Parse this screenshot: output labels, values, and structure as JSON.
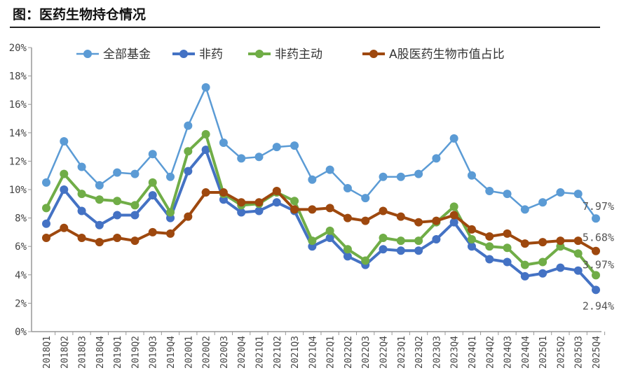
{
  "title": "图：医药生物持仓情况",
  "chart_data": {
    "type": "line",
    "title": "",
    "xlabel": "",
    "ylabel": "",
    "ylim": [
      0,
      20
    ],
    "yticks": [
      "0%",
      "2%",
      "4%",
      "6%",
      "8%",
      "10%",
      "12%",
      "14%",
      "16%",
      "18%",
      "20%"
    ],
    "legend_position": "top",
    "categories": [
      "2018Q1",
      "2018Q2",
      "2018Q3",
      "2018Q4",
      "2019Q1",
      "2019Q2",
      "2019Q3",
      "2019Q4",
      "2020Q1",
      "2020Q2",
      "2020Q3",
      "2020Q4",
      "2021Q1",
      "2021Q2",
      "2021Q3",
      "2021Q4",
      "2022Q1",
      "2022Q2",
      "2022Q3",
      "2022Q4",
      "2023Q1",
      "2023Q2",
      "2023Q3",
      "2023Q4",
      "2024Q1",
      "2024Q2",
      "2024Q3",
      "2024Q4",
      "2025Q1",
      "2025Q2",
      "2025Q3",
      "2025Q4"
    ],
    "series": [
      {
        "name": "全部基金",
        "color": "#5b9bd5",
        "width": 2.5,
        "values": [
          10.5,
          13.4,
          11.6,
          10.3,
          11.2,
          11.1,
          12.5,
          10.9,
          14.5,
          17.2,
          13.3,
          12.2,
          12.3,
          13.0,
          13.1,
          10.7,
          11.4,
          10.1,
          9.4,
          10.9,
          10.9,
          11.1,
          12.2,
          13.6,
          11.0,
          9.9,
          9.7,
          8.6,
          9.1,
          9.8,
          9.7,
          7.97
        ],
        "end_label": "7.97%"
      },
      {
        "name": "非药",
        "color": "#4472c4",
        "width": 4,
        "values": [
          7.6,
          10.0,
          8.5,
          7.5,
          8.2,
          8.2,
          9.6,
          8.0,
          11.3,
          12.8,
          9.3,
          8.4,
          8.5,
          9.1,
          8.5,
          6.0,
          6.6,
          5.3,
          4.7,
          5.8,
          5.7,
          5.7,
          6.5,
          7.7,
          6.0,
          5.1,
          4.9,
          3.9,
          4.1,
          4.5,
          4.3,
          2.94
        ],
        "end_label": "2.94%"
      },
      {
        "name": "非药主动",
        "color": "#70ad47",
        "width": 4,
        "values": [
          8.7,
          11.1,
          9.7,
          9.3,
          9.2,
          8.9,
          10.5,
          8.4,
          12.7,
          13.9,
          9.7,
          8.9,
          9.0,
          9.8,
          9.2,
          6.4,
          7.1,
          5.8,
          5.0,
          6.6,
          6.4,
          6.4,
          7.7,
          8.8,
          6.5,
          6.0,
          5.9,
          4.7,
          4.9,
          6.0,
          5.5,
          3.97
        ],
        "end_label": "3.97%"
      },
      {
        "name": "A股医药生物市值占比",
        "color": "#9e480e",
        "width": 4,
        "values": [
          6.6,
          7.3,
          6.6,
          6.3,
          6.6,
          6.4,
          7.0,
          6.9,
          8.1,
          9.8,
          9.8,
          9.1,
          9.1,
          9.9,
          8.6,
          8.6,
          8.7,
          8.0,
          7.8,
          8.5,
          8.1,
          7.7,
          7.8,
          8.2,
          7.2,
          6.7,
          6.9,
          6.2,
          6.3,
          6.4,
          6.4,
          5.68
        ],
        "end_label": "5.68%"
      }
    ]
  }
}
